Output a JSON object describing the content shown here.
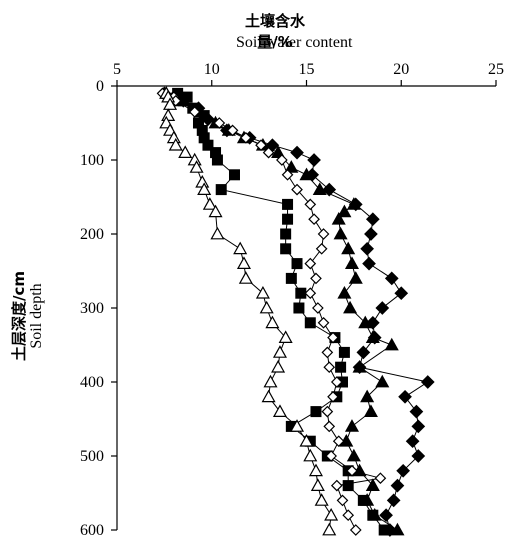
{
  "chart_data": {
    "type": "scatter",
    "title": "土壤含水量/%",
    "subtitle": "Soil water content",
    "ylabel_cn": "土层深度/cm",
    "ylabel_en": "Soil depth",
    "x_axis_position": "top",
    "y_axis_inverted": true,
    "xlim": [
      5,
      25
    ],
    "ylim": [
      0,
      600
    ],
    "xticks": [
      5,
      10,
      15,
      20,
      25
    ],
    "yticks": [
      0,
      100,
      200,
      300,
      400,
      500,
      600
    ],
    "grid": false,
    "series": [
      {
        "marker": "filled-square",
        "points": [
          [
            8.2,
            10
          ],
          [
            8.7,
            15
          ],
          [
            8.5,
            20
          ],
          [
            9,
            30
          ],
          [
            9.6,
            40
          ],
          [
            9.3,
            50
          ],
          [
            9.5,
            60
          ],
          [
            9.6,
            70
          ],
          [
            9.8,
            80
          ],
          [
            10.2,
            90
          ],
          [
            10.3,
            100
          ],
          [
            11.2,
            120
          ],
          [
            10.5,
            140
          ],
          [
            14,
            160
          ],
          [
            14,
            180
          ],
          [
            13.9,
            200
          ],
          [
            13.9,
            220
          ],
          [
            14.5,
            240
          ],
          [
            14.2,
            260
          ],
          [
            14.7,
            280
          ],
          [
            14.6,
            300
          ],
          [
            15.2,
            320
          ],
          [
            16.5,
            340
          ],
          [
            17,
            360
          ],
          [
            16.8,
            380
          ],
          [
            16.9,
            400
          ],
          [
            16.6,
            420
          ],
          [
            15.5,
            440
          ],
          [
            14.2,
            460
          ],
          [
            15.2,
            480
          ],
          [
            16.1,
            500
          ],
          [
            17.2,
            520
          ],
          [
            17.2,
            540
          ],
          [
            18,
            560
          ],
          [
            18.5,
            580
          ],
          [
            19.1,
            600
          ]
        ]
      },
      {
        "marker": "filled-diamond",
        "points": [
          [
            7.5,
            10
          ],
          [
            8,
            15
          ],
          [
            8.5,
            20
          ],
          [
            9.3,
            30
          ],
          [
            9.8,
            45
          ],
          [
            10.8,
            60
          ],
          [
            12,
            70
          ],
          [
            13.2,
            80
          ],
          [
            14.5,
            90
          ],
          [
            15.4,
            100
          ],
          [
            15.3,
            120
          ],
          [
            16.2,
            140
          ],
          [
            17.6,
            160
          ],
          [
            18.5,
            180
          ],
          [
            18.4,
            200
          ],
          [
            18.2,
            220
          ],
          [
            18.3,
            240
          ],
          [
            19.5,
            260
          ],
          [
            20,
            280
          ],
          [
            19,
            300
          ],
          [
            18.5,
            320
          ],
          [
            18.6,
            340
          ],
          [
            18,
            360
          ],
          [
            17.8,
            380
          ],
          [
            21.4,
            400
          ],
          [
            20.2,
            420
          ],
          [
            20.8,
            440
          ],
          [
            20.9,
            460
          ],
          [
            20.6,
            480
          ],
          [
            20.9,
            500
          ],
          [
            20.1,
            520
          ],
          [
            19.8,
            540
          ],
          [
            19.6,
            560
          ],
          [
            19.2,
            580
          ],
          [
            19.4,
            600
          ]
        ]
      },
      {
        "marker": "filled-triangle",
        "points": [
          [
            7.6,
            10
          ],
          [
            8.1,
            15
          ],
          [
            8.2,
            20
          ],
          [
            9.4,
            35
          ],
          [
            10.2,
            50
          ],
          [
            10.9,
            60
          ],
          [
            11.7,
            70
          ],
          [
            12.7,
            80
          ],
          [
            13.5,
            90
          ],
          [
            14.2,
            110
          ],
          [
            15,
            120
          ],
          [
            15.7,
            140
          ],
          [
            17.5,
            160
          ],
          [
            17,
            170
          ],
          [
            16.7,
            180
          ],
          [
            16.8,
            200
          ],
          [
            17.2,
            220
          ],
          [
            17.4,
            240
          ],
          [
            17.6,
            260
          ],
          [
            17,
            280
          ],
          [
            17.3,
            300
          ],
          [
            18.1,
            320
          ],
          [
            18.5,
            340
          ],
          [
            19.5,
            350
          ],
          [
            17.8,
            380
          ],
          [
            19,
            400
          ],
          [
            18.2,
            420
          ],
          [
            18.4,
            440
          ],
          [
            17.4,
            460
          ],
          [
            17.1,
            480
          ],
          [
            17.5,
            500
          ],
          [
            17.8,
            520
          ],
          [
            18.5,
            540
          ],
          [
            18.2,
            560
          ],
          [
            18.6,
            580
          ],
          [
            19.8,
            600
          ]
        ]
      },
      {
        "marker": "open-diamond",
        "points": [
          [
            7.4,
            10
          ],
          [
            8,
            15
          ],
          [
            8.1,
            20
          ],
          [
            9.1,
            35
          ],
          [
            10.4,
            50
          ],
          [
            11.1,
            60
          ],
          [
            11.8,
            70
          ],
          [
            12.6,
            80
          ],
          [
            13,
            90
          ],
          [
            13.7,
            100
          ],
          [
            14,
            120
          ],
          [
            14.5,
            140
          ],
          [
            15.2,
            160
          ],
          [
            15.4,
            180
          ],
          [
            15.9,
            200
          ],
          [
            15.8,
            220
          ],
          [
            15.2,
            240
          ],
          [
            15.5,
            260
          ],
          [
            15.2,
            280
          ],
          [
            15.6,
            300
          ],
          [
            15.9,
            320
          ],
          [
            16.4,
            340
          ],
          [
            16.1,
            360
          ],
          [
            16.2,
            380
          ],
          [
            16.6,
            400
          ],
          [
            16.4,
            420
          ],
          [
            16.1,
            440
          ],
          [
            16.2,
            460
          ],
          [
            16.7,
            480
          ],
          [
            16.3,
            500
          ],
          [
            17.4,
            520
          ],
          [
            18.9,
            530
          ],
          [
            16.6,
            540
          ],
          [
            16.9,
            560
          ],
          [
            17.2,
            580
          ],
          [
            17.6,
            600
          ]
        ]
      },
      {
        "marker": "open-triangle",
        "points": [
          [
            7.6,
            10
          ],
          [
            7.7,
            15
          ],
          [
            7.8,
            25
          ],
          [
            7.7,
            40
          ],
          [
            7.6,
            50
          ],
          [
            7.8,
            60
          ],
          [
            8,
            70
          ],
          [
            8.1,
            80
          ],
          [
            8.6,
            90
          ],
          [
            9.1,
            100
          ],
          [
            9.2,
            110
          ],
          [
            9.5,
            130
          ],
          [
            9.6,
            140
          ],
          [
            9.9,
            160
          ],
          [
            10.2,
            170
          ],
          [
            10.3,
            200
          ],
          [
            11.5,
            220
          ],
          [
            11.7,
            240
          ],
          [
            11.8,
            260
          ],
          [
            12.7,
            280
          ],
          [
            12.9,
            300
          ],
          [
            13.2,
            320
          ],
          [
            13.9,
            340
          ],
          [
            13.6,
            360
          ],
          [
            13.5,
            380
          ],
          [
            13.1,
            400
          ],
          [
            13,
            420
          ],
          [
            13.6,
            440
          ],
          [
            14.5,
            460
          ],
          [
            15,
            480
          ],
          [
            15.2,
            500
          ],
          [
            15.5,
            520
          ],
          [
            15.6,
            540
          ],
          [
            15.8,
            560
          ],
          [
            16.3,
            580
          ],
          [
            16.2,
            600
          ]
        ]
      }
    ]
  }
}
